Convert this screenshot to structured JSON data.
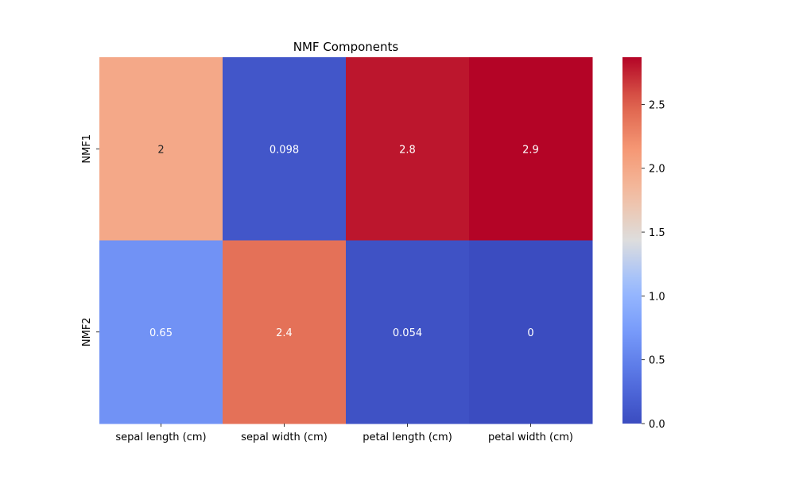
{
  "chart_data": {
    "type": "heatmap",
    "title": "NMF Components",
    "xlabel": "",
    "ylabel": "",
    "x_categories": [
      "sepal length (cm)",
      "sepal width (cm)",
      "petal length (cm)",
      "petal width (cm)"
    ],
    "y_categories": [
      "NMF1",
      "NMF2"
    ],
    "values": [
      [
        2.0,
        0.098,
        2.8,
        2.9
      ],
      [
        0.65,
        2.4,
        0.054,
        0.0
      ]
    ],
    "annotations": [
      [
        "2",
        "0.098",
        "2.8",
        "2.9"
      ],
      [
        "0.65",
        "2.4",
        "0.054",
        "0"
      ]
    ],
    "colormap": "coolwarm",
    "color_range": [
      0,
      2.87
    ],
    "colorbar_ticks": [
      0.0,
      0.5,
      1.0,
      1.5,
      2.0,
      2.5
    ],
    "colorbar_tick_labels": [
      "0.0",
      "0.5",
      "1.0",
      "1.5",
      "2.0",
      "2.5"
    ]
  }
}
